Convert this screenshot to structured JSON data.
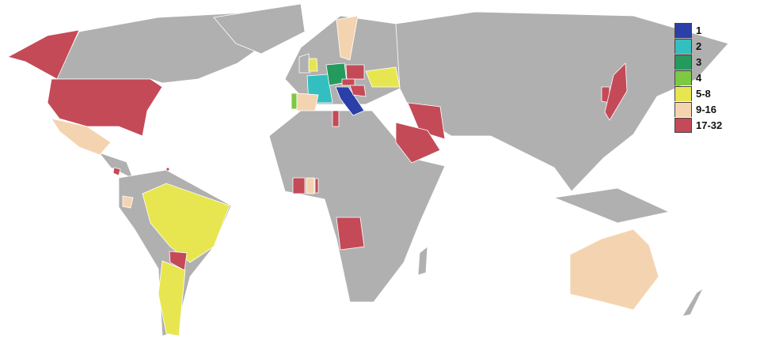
{
  "map": {
    "base_color": "#b0b0b0",
    "border_color": "#ffffff"
  },
  "legend": {
    "items": [
      {
        "label": "1",
        "color": "#2b3fa8"
      },
      {
        "label": "2",
        "color": "#33bfbf"
      },
      {
        "label": "3",
        "color": "#249a5c"
      },
      {
        "label": "4",
        "color": "#7cc943"
      },
      {
        "label": "5-8",
        "color": "#e8e650"
      },
      {
        "label": "9-16",
        "color": "#f4d4b0"
      },
      {
        "label": "17-32",
        "color": "#c44a57"
      }
    ]
  }
}
